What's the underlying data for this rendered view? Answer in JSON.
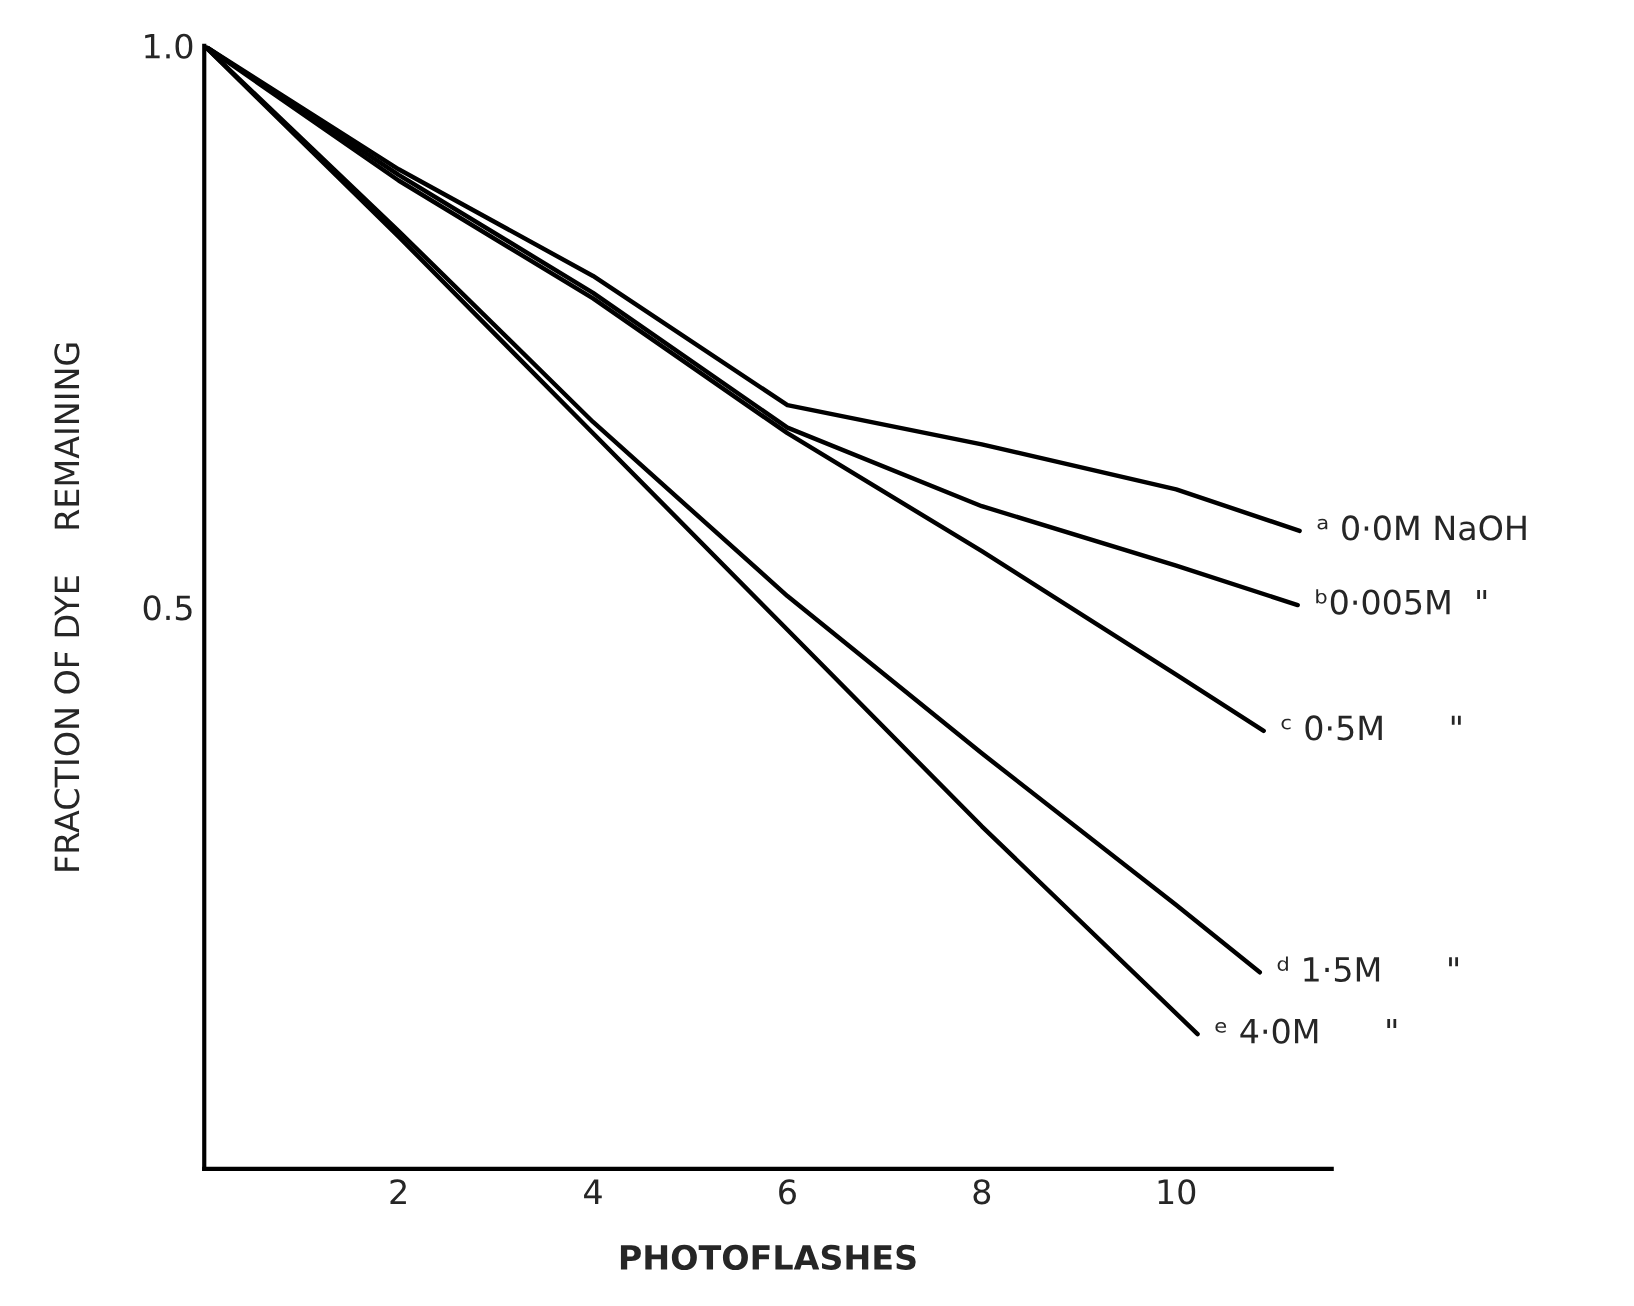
{
  "chart_data": {
    "type": "line",
    "xlabel": "PHOTOFLASHES",
    "ylabel": "FRACTION OF DYE    REMAINING",
    "xlim": [
      0,
      11.6
    ],
    "ylim": [
      0,
      1.0
    ],
    "xticks": [
      2,
      4,
      6,
      8,
      10
    ],
    "yticks": [
      0.5,
      {
        "value": 1.0,
        "label": "1.0"
      }
    ],
    "grid": false,
    "legend": false,
    "marker": "none",
    "line_style": "solid",
    "series": [
      {
        "name": "ᵃ 0·0M NaOH",
        "color": "#000000",
        "x": [
          0,
          2,
          4,
          6,
          8,
          10,
          11.27
        ],
        "values": [
          1.0,
          0.89,
          0.795,
          0.68,
          0.645,
          0.605,
          0.568
        ]
      },
      {
        "name": "ᵇ0·005M  \"",
        "color": "#000000",
        "x": [
          0,
          2,
          4,
          6,
          8,
          10,
          11.25
        ],
        "values": [
          1.0,
          0.885,
          0.78,
          0.66,
          0.59,
          0.537,
          0.502
        ]
      },
      {
        "name": "ᶜ 0·5M      \"",
        "color": "#000000",
        "x": [
          0,
          2,
          4,
          6,
          8,
          10,
          10.9
        ],
        "values": [
          1.0,
          0.88,
          0.775,
          0.655,
          0.55,
          0.44,
          0.39
        ]
      },
      {
        "name": "ᵈ 1·5M      \"",
        "color": "#000000",
        "x": [
          0,
          2,
          4,
          6,
          8,
          10,
          10.86
        ],
        "values": [
          1.0,
          0.835,
          0.665,
          0.51,
          0.37,
          0.235,
          0.175
        ]
      },
      {
        "name": "ᵉ 4·0M      \"",
        "color": "#000000",
        "x": [
          0,
          2,
          4,
          6,
          8,
          10.22
        ],
        "values": [
          1.0,
          0.83,
          0.655,
          0.48,
          0.305,
          0.12
        ]
      }
    ]
  }
}
